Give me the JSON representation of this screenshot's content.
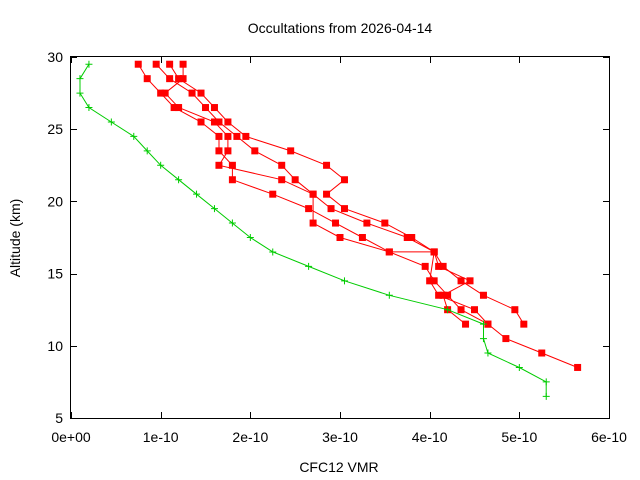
{
  "chart_data": {
    "type": "line",
    "title": "Occultations from 2026-04-14",
    "xlabel": "CFC12 VMR",
    "ylabel": "Altitude (km)",
    "xlim": [
      0,
      6e-10
    ],
    "ylim": [
      5,
      30
    ],
    "x_ticks": [
      0,
      1e-10,
      2e-10,
      3e-10,
      4e-10,
      5e-10,
      6e-10
    ],
    "x_tick_labels": [
      "0e+00",
      "1e-10",
      "2e-10",
      "3e-10",
      "4e-10",
      "5e-10",
      "6e-10"
    ],
    "y_ticks": [
      5,
      10,
      15,
      20,
      25,
      30
    ],
    "y_tick_labels": [
      "5",
      "10",
      "15",
      "20",
      "25",
      "30"
    ],
    "grid": false,
    "legend": "none",
    "series": [
      {
        "color": "#ff0000",
        "marker": "square",
        "points": [
          [
            7.5e-11,
            29.5
          ],
          [
            8.5e-11,
            28.5
          ],
          [
            1e-10,
            27.5
          ],
          [
            1.15e-10,
            26.5
          ],
          [
            1.45e-10,
            25.5
          ],
          [
            1.65e-10,
            24.5
          ],
          [
            1.65e-10,
            23.5
          ],
          [
            1.8e-10,
            22.5
          ],
          [
            1.8e-10,
            21.5
          ],
          [
            2.25e-10,
            20.5
          ],
          [
            2.65e-10,
            19.5
          ],
          [
            2.95e-10,
            18.5
          ],
          [
            3.25e-10,
            17.5
          ],
          [
            3.55e-10,
            16.5
          ],
          [
            3.95e-10,
            15.5
          ],
          [
            4.05e-10,
            14.5
          ],
          [
            4.2e-10,
            13.5
          ],
          [
            4.35e-10,
            12.5
          ],
          [
            4.65e-10,
            11.5
          ],
          [
            4.85e-10,
            10.5
          ],
          [
            5.25e-10,
            9.5
          ],
          [
            5.65e-10,
            8.5
          ]
        ]
      },
      {
        "color": "#ff0000",
        "marker": "square",
        "points": [
          [
            9.5e-11,
            29.5
          ],
          [
            1.1e-10,
            28.5
          ],
          [
            1.35e-10,
            27.5
          ],
          [
            1.5e-10,
            26.5
          ],
          [
            1.65e-10,
            25.5
          ],
          [
            1.85e-10,
            24.5
          ],
          [
            2.05e-10,
            23.5
          ],
          [
            2.35e-10,
            22.5
          ],
          [
            2.5e-10,
            21.5
          ],
          [
            2.7e-10,
            20.5
          ],
          [
            2.9e-10,
            19.5
          ],
          [
            3.3e-10,
            18.5
          ],
          [
            3.75e-10,
            17.5
          ],
          [
            4.05e-10,
            16.5
          ],
          [
            4.15e-10,
            15.5
          ],
          [
            4.35e-10,
            14.5
          ],
          [
            4.6e-10,
            13.5
          ],
          [
            4.95e-10,
            12.5
          ],
          [
            5.05e-10,
            11.5
          ]
        ]
      },
      {
        "color": "#ff0000",
        "marker": "square",
        "points": [
          [
            1.1e-10,
            29.5
          ],
          [
            1.2e-10,
            28.5
          ],
          [
            1.45e-10,
            27.5
          ],
          [
            1.6e-10,
            26.5
          ],
          [
            1.75e-10,
            25.5
          ],
          [
            1.95e-10,
            24.5
          ],
          [
            2.45e-10,
            23.5
          ],
          [
            2.85e-10,
            22.5
          ],
          [
            3.05e-10,
            21.5
          ],
          [
            2.85e-10,
            20.5
          ],
          [
            3.05e-10,
            19.5
          ],
          [
            3.5e-10,
            18.5
          ],
          [
            3.8e-10,
            17.5
          ],
          [
            4.05e-10,
            16.5
          ],
          [
            4.1e-10,
            15.5
          ],
          [
            4.45e-10,
            14.5
          ],
          [
            4.15e-10,
            13.5
          ],
          [
            4.2e-10,
            12.5
          ],
          [
            4.4e-10,
            11.5
          ]
        ]
      },
      {
        "color": "#ff0000",
        "marker": "square",
        "points": [
          [
            1.25e-10,
            29.5
          ],
          [
            1.25e-10,
            28.5
          ],
          [
            1.05e-10,
            27.5
          ],
          [
            1.2e-10,
            26.5
          ],
          [
            1.6e-10,
            25.5
          ],
          [
            1.75e-10,
            24.5
          ],
          [
            1.75e-10,
            23.5
          ],
          [
            1.65e-10,
            22.5
          ],
          [
            2.35e-10,
            21.5
          ],
          [
            2.7e-10,
            20.5
          ],
          [
            2.7e-10,
            18.5
          ],
          [
            3e-10,
            17.5
          ],
          [
            3.55e-10,
            16.5
          ],
          [
            4.05e-10,
            16.5
          ],
          [
            4e-10,
            14.5
          ],
          [
            4.1e-10,
            13.5
          ],
          [
            4.5e-10,
            12.5
          ],
          [
            4.65e-10,
            11.5
          ]
        ]
      },
      {
        "color": "#00cc00",
        "marker": "plus",
        "points": [
          [
            2e-11,
            29.5
          ],
          [
            1e-11,
            28.5
          ],
          [
            1e-11,
            27.5
          ],
          [
            2e-11,
            26.5
          ],
          [
            4.5e-11,
            25.5
          ],
          [
            7e-11,
            24.5
          ],
          [
            8.5e-11,
            23.5
          ],
          [
            1e-10,
            22.5
          ],
          [
            1.2e-10,
            21.5
          ],
          [
            1.4e-10,
            20.5
          ],
          [
            1.6e-10,
            19.5
          ],
          [
            1.8e-10,
            18.5
          ],
          [
            2e-10,
            17.5
          ],
          [
            2.25e-10,
            16.5
          ],
          [
            2.65e-10,
            15.5
          ],
          [
            3.05e-10,
            14.5
          ],
          [
            3.55e-10,
            13.5
          ],
          [
            4.2e-10,
            12.5
          ],
          [
            4.6e-10,
            11.5
          ],
          [
            4.6e-10,
            10.5
          ],
          [
            4.65e-10,
            9.5
          ],
          [
            5e-10,
            8.5
          ],
          [
            5.3e-10,
            7.5
          ],
          [
            5.3e-10,
            6.5
          ]
        ]
      }
    ]
  }
}
